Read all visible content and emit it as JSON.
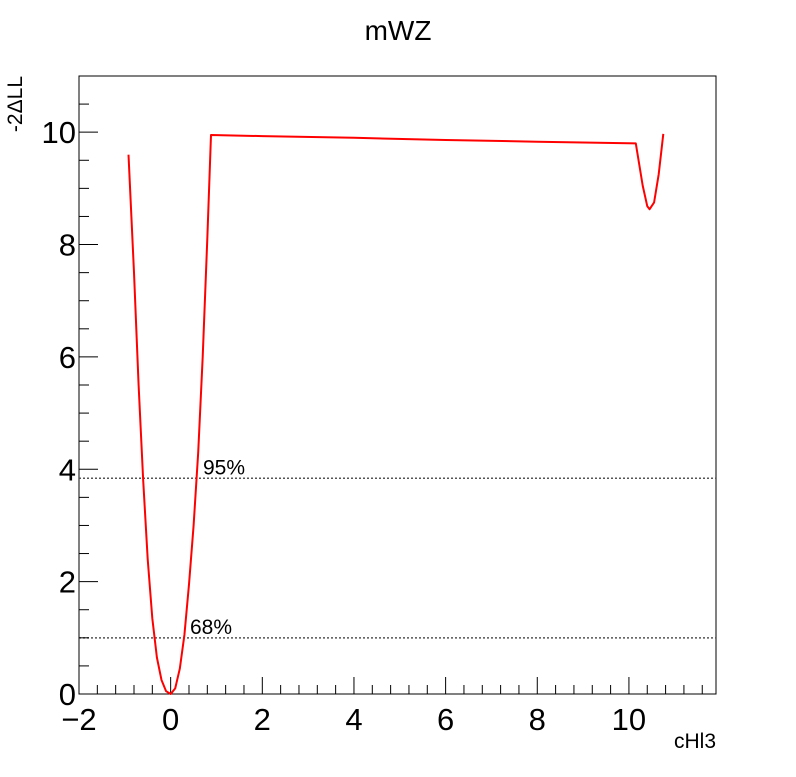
{
  "chart_data": {
    "type": "line",
    "title": "mWZ",
    "xlabel": "cHl3",
    "ylabel": "-2ΔLL",
    "xlim": [
      -2.0,
      11.9
    ],
    "ylim": [
      0,
      11
    ],
    "x_ticks": [
      "−2",
      "0",
      "2",
      "4",
      "6",
      "8",
      "10"
    ],
    "x_tick_values": [
      -2,
      0,
      2,
      4,
      6,
      8,
      10
    ],
    "y_ticks": [
      "0",
      "2",
      "4",
      "6",
      "8",
      "10"
    ],
    "y_tick_values": [
      0,
      2,
      4,
      6,
      8,
      10
    ],
    "grid": false,
    "series": [
      {
        "color": "#ff0000",
        "x": [
          -0.92,
          -0.8,
          -0.7,
          -0.6,
          -0.5,
          -0.4,
          -0.3,
          -0.2,
          -0.1,
          0.0,
          0.1,
          0.2,
          0.3,
          0.4,
          0.5,
          0.6,
          0.7,
          0.8,
          0.88,
          2.0,
          4.0,
          6.0,
          8.0,
          10.15,
          10.3,
          10.4,
          10.45,
          10.55,
          10.65,
          10.75
        ],
        "y": [
          9.6,
          7.5,
          5.5,
          3.8,
          2.4,
          1.35,
          0.65,
          0.25,
          0.05,
          0.0,
          0.1,
          0.45,
          1.05,
          1.95,
          3.0,
          4.3,
          6.0,
          8.1,
          9.95,
          9.93,
          9.9,
          9.86,
          9.83,
          9.8,
          9.05,
          8.68,
          8.63,
          8.75,
          9.25,
          9.97
        ]
      }
    ],
    "reference_lines": [
      {
        "y": 3.84,
        "label": "95%"
      },
      {
        "y": 1.0,
        "label": "68%"
      }
    ]
  }
}
